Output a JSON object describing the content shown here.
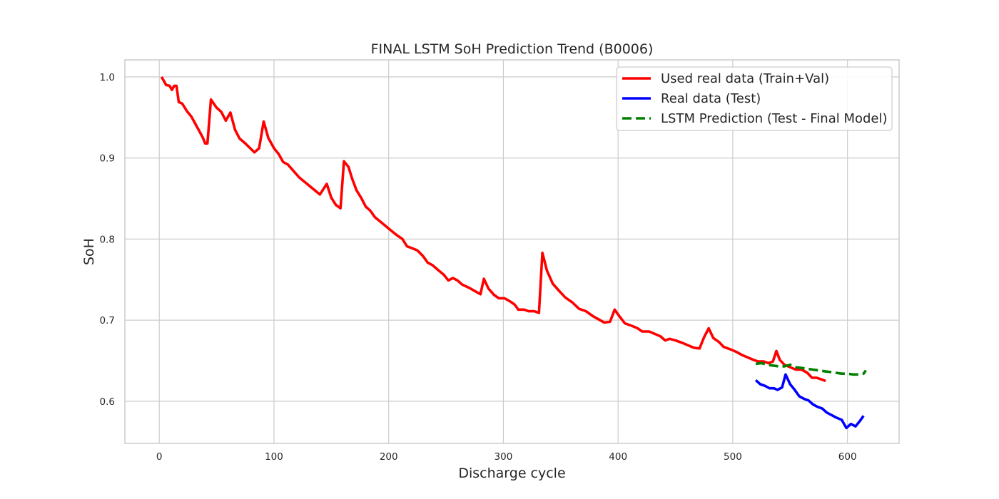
{
  "chart_data": {
    "type": "line",
    "title": "FINAL LSTM SoH Prediction Trend (B0006)",
    "xlabel": "Discharge cycle",
    "ylabel": "SoH",
    "xlim": [
      -30,
      645
    ],
    "ylim": [
      0.548,
      1.021
    ],
    "xticks": [
      0,
      100,
      200,
      300,
      400,
      500,
      600
    ],
    "yticks": [
      0.6,
      0.7,
      0.8,
      0.9,
      1.0
    ],
    "xtick_labels": [
      "0",
      "100",
      "200",
      "300",
      "400",
      "500",
      "600"
    ],
    "ytick_labels": [
      "0.6",
      "0.7",
      "0.8",
      "0.9",
      "1.0"
    ],
    "grid": true,
    "legend_position": "top-right",
    "series": [
      {
        "name": "Used real data (Train+Val)",
        "color": "#ff0000",
        "style": "solid",
        "points": [
          [
            2,
            1.0
          ],
          [
            6,
            0.99
          ],
          [
            9,
            0.989
          ],
          [
            11,
            0.984
          ],
          [
            13,
            0.989
          ],
          [
            15,
            0.989
          ],
          [
            17,
            0.969
          ],
          [
            20,
            0.967
          ],
          [
            24,
            0.958
          ],
          [
            28,
            0.951
          ],
          [
            33,
            0.938
          ],
          [
            38,
            0.925
          ],
          [
            40,
            0.918
          ],
          [
            42,
            0.918
          ],
          [
            45,
            0.972
          ],
          [
            50,
            0.962
          ],
          [
            54,
            0.957
          ],
          [
            58,
            0.946
          ],
          [
            62,
            0.956
          ],
          [
            66,
            0.935
          ],
          [
            70,
            0.924
          ],
          [
            75,
            0.918
          ],
          [
            80,
            0.911
          ],
          [
            83,
            0.907
          ],
          [
            87,
            0.912
          ],
          [
            91,
            0.945
          ],
          [
            95,
            0.925
          ],
          [
            100,
            0.912
          ],
          [
            104,
            0.905
          ],
          [
            108,
            0.895
          ],
          [
            112,
            0.892
          ],
          [
            117,
            0.884
          ],
          [
            122,
            0.876
          ],
          [
            128,
            0.869
          ],
          [
            134,
            0.862
          ],
          [
            140,
            0.855
          ],
          [
            146,
            0.868
          ],
          [
            150,
            0.851
          ],
          [
            154,
            0.842
          ],
          [
            158,
            0.838
          ],
          [
            161,
            0.896
          ],
          [
            165,
            0.889
          ],
          [
            168,
            0.875
          ],
          [
            172,
            0.86
          ],
          [
            176,
            0.851
          ],
          [
            180,
            0.84
          ],
          [
            184,
            0.835
          ],
          [
            188,
            0.827
          ],
          [
            194,
            0.82
          ],
          [
            200,
            0.813
          ],
          [
            206,
            0.806
          ],
          [
            212,
            0.8
          ],
          [
            216,
            0.791
          ],
          [
            220,
            0.789
          ],
          [
            225,
            0.786
          ],
          [
            230,
            0.779
          ],
          [
            234,
            0.771
          ],
          [
            238,
            0.768
          ],
          [
            243,
            0.762
          ],
          [
            248,
            0.756
          ],
          [
            252,
            0.749
          ],
          [
            256,
            0.752
          ],
          [
            260,
            0.749
          ],
          [
            264,
            0.744
          ],
          [
            270,
            0.74
          ],
          [
            275,
            0.736
          ],
          [
            280,
            0.732
          ],
          [
            283,
            0.751
          ],
          [
            287,
            0.739
          ],
          [
            292,
            0.731
          ],
          [
            296,
            0.727
          ],
          [
            301,
            0.727
          ],
          [
            306,
            0.723
          ],
          [
            310,
            0.719
          ],
          [
            313,
            0.713
          ],
          [
            318,
            0.713
          ],
          [
            322,
            0.711
          ],
          [
            327,
            0.711
          ],
          [
            331,
            0.709
          ],
          [
            334,
            0.783
          ],
          [
            338,
            0.761
          ],
          [
            343,
            0.745
          ],
          [
            348,
            0.737
          ],
          [
            354,
            0.728
          ],
          [
            360,
            0.722
          ],
          [
            366,
            0.714
          ],
          [
            372,
            0.711
          ],
          [
            378,
            0.705
          ],
          [
            383,
            0.701
          ],
          [
            388,
            0.697
          ],
          [
            393,
            0.698
          ],
          [
            397,
            0.713
          ],
          [
            401,
            0.705
          ],
          [
            406,
            0.696
          ],
          [
            412,
            0.693
          ],
          [
            417,
            0.69
          ],
          [
            421,
            0.686
          ],
          [
            427,
            0.686
          ],
          [
            432,
            0.683
          ],
          [
            437,
            0.68
          ],
          [
            441,
            0.675
          ],
          [
            445,
            0.677
          ],
          [
            450,
            0.675
          ],
          [
            456,
            0.672
          ],
          [
            461,
            0.669
          ],
          [
            466,
            0.666
          ],
          [
            471,
            0.665
          ],
          [
            475,
            0.679
          ],
          [
            479,
            0.69
          ],
          [
            483,
            0.678
          ],
          [
            488,
            0.673
          ],
          [
            492,
            0.667
          ],
          [
            498,
            0.664
          ],
          [
            503,
            0.661
          ],
          [
            508,
            0.657
          ],
          [
            513,
            0.654
          ],
          [
            518,
            0.651
          ],
          [
            522,
            0.649
          ],
          [
            527,
            0.649
          ],
          [
            531,
            0.647
          ],
          [
            535,
            0.649
          ],
          [
            538,
            0.662
          ],
          [
            541,
            0.651
          ],
          [
            545,
            0.645
          ],
          [
            550,
            0.642
          ],
          [
            555,
            0.639
          ],
          [
            560,
            0.639
          ],
          [
            565,
            0.635
          ],
          [
            569,
            0.629
          ],
          [
            573,
            0.629
          ],
          [
            577,
            0.627
          ],
          [
            581,
            0.625
          ]
        ]
      },
      {
        "name": "Real data (Test)",
        "color": "#0000ff",
        "style": "solid",
        "points": [
          [
            520,
            0.626
          ],
          [
            524,
            0.621
          ],
          [
            528,
            0.619
          ],
          [
            532,
            0.616
          ],
          [
            536,
            0.616
          ],
          [
            539,
            0.614
          ],
          [
            543,
            0.617
          ],
          [
            546,
            0.633
          ],
          [
            550,
            0.621
          ],
          [
            554,
            0.614
          ],
          [
            558,
            0.606
          ],
          [
            562,
            0.603
          ],
          [
            566,
            0.601
          ],
          [
            570,
            0.596
          ],
          [
            574,
            0.593
          ],
          [
            578,
            0.591
          ],
          [
            582,
            0.586
          ],
          [
            586,
            0.583
          ],
          [
            590,
            0.58
          ],
          [
            595,
            0.577
          ],
          [
            599,
            0.567
          ],
          [
            603,
            0.572
          ],
          [
            607,
            0.569
          ],
          [
            611,
            0.576
          ],
          [
            614,
            0.582
          ]
        ]
      },
      {
        "name": "LSTM Prediction (Test - Final Model)",
        "color": "#008000",
        "style": "dashed",
        "points": [
          [
            520,
            0.646
          ],
          [
            525,
            0.647
          ],
          [
            530,
            0.645
          ],
          [
            535,
            0.644
          ],
          [
            540,
            0.643
          ],
          [
            545,
            0.643
          ],
          [
            550,
            0.645
          ],
          [
            555,
            0.642
          ],
          [
            560,
            0.641
          ],
          [
            565,
            0.64
          ],
          [
            570,
            0.639
          ],
          [
            575,
            0.638
          ],
          [
            580,
            0.637
          ],
          [
            585,
            0.636
          ],
          [
            590,
            0.635
          ],
          [
            595,
            0.634
          ],
          [
            600,
            0.634
          ],
          [
            605,
            0.633
          ],
          [
            610,
            0.633
          ],
          [
            614,
            0.634
          ],
          [
            616,
            0.638
          ]
        ]
      }
    ]
  }
}
